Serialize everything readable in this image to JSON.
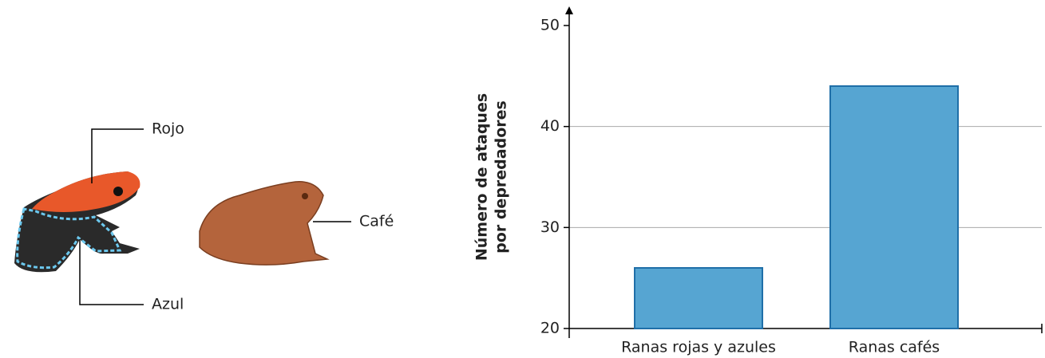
{
  "illustration": {
    "labels": [
      "Rojo",
      "Azul",
      "Café"
    ]
  },
  "chart_data": {
    "type": "bar",
    "ylabel": [
      "Número de ataques",
      "por depredadores"
    ],
    "categories": [
      "Ranas rojas y azules",
      "Ranas cafés"
    ],
    "values": [
      26,
      44
    ],
    "color": "#56a5d2",
    "ylim": [
      20,
      50
    ],
    "yticks": [
      20,
      30,
      40,
      50
    ],
    "grid": true
  }
}
